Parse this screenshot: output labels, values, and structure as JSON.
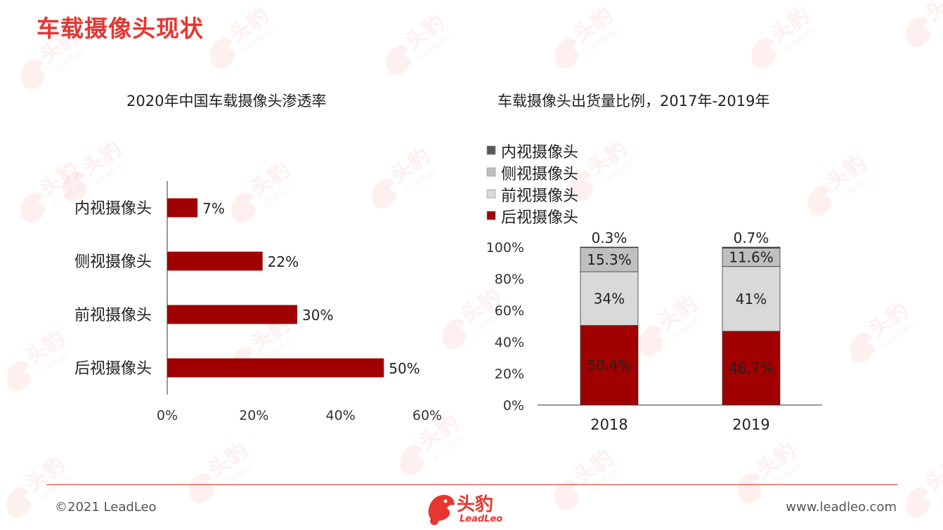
{
  "slide": {
    "title": "车载摄像头现状",
    "accent_color": "#E8352F",
    "bar_color": "#A00000"
  },
  "watermark": {
    "text": "头豹",
    "subtext": "LeadLeo"
  },
  "left_chart_title": "2020年中国车载摄像头渗透率",
  "right_chart_title": "车载摄像头出货量比例，2017年-2019年",
  "chart_data": [
    {
      "type": "bar",
      "orientation": "horizontal",
      "title": "2020年中国车载摄像头渗透率",
      "categories": [
        "内视摄像头",
        "侧视摄像头",
        "前视摄像头",
        "后视摄像头"
      ],
      "values": [
        7,
        22,
        30,
        50
      ],
      "data_labels": [
        "7%",
        "22%",
        "30%",
        "50%"
      ],
      "xlim": [
        0,
        60
      ],
      "x_ticks": [
        "0%",
        "20%",
        "40%",
        "60%"
      ],
      "grid": false
    },
    {
      "type": "bar",
      "stacked": true,
      "title": "车载摄像头出货量比例，2017年-2019年",
      "categories": [
        "2018",
        "2019"
      ],
      "series": [
        {
          "name": "后视摄像头",
          "color": "#A00000",
          "values": [
            50.4,
            46.7
          ],
          "labels": [
            "50.4%",
            "46.7%"
          ]
        },
        {
          "name": "前视摄像头",
          "color": "#D9D9D9",
          "values": [
            34,
            41
          ],
          "labels": [
            "34%",
            "41%"
          ]
        },
        {
          "name": "侧视摄像头",
          "color": "#BFBFBF",
          "values": [
            15.3,
            11.6
          ],
          "labels": [
            "15.3%",
            "11.6%"
          ]
        },
        {
          "name": "内视摄像头",
          "color": "#595959",
          "values": [
            0.3,
            0.7
          ],
          "labels": [
            "0.3%",
            "0.7%"
          ]
        }
      ],
      "legend_order": [
        "内视摄像头",
        "侧视摄像头",
        "前视摄像头",
        "后视摄像头"
      ],
      "legend_position": "top-left",
      "ylim": [
        0,
        100
      ],
      "y_ticks": [
        "0%",
        "20%",
        "40%",
        "60%",
        "80%",
        "100%"
      ],
      "grid": false
    }
  ],
  "footer": {
    "copyright": "©2021 LeadLeo",
    "website": "www.leadleo.com",
    "logo_text": "头豹",
    "logo_subtext": "LeadLeo"
  }
}
